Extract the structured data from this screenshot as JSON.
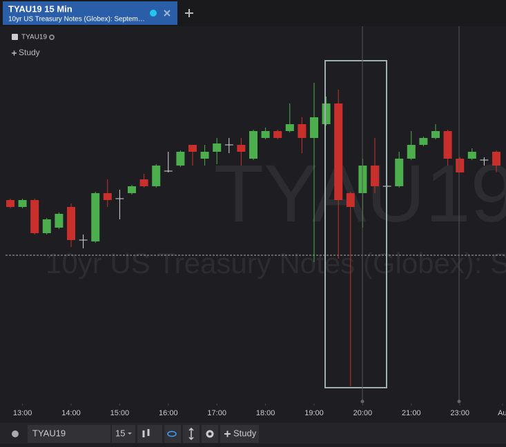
{
  "tab": {
    "title": "TYAU19 15 Min",
    "subtitle": "10yr US Treasury Notes (Globex): Septem…"
  },
  "legend": {
    "symbol": "TYAU19",
    "study": "Study"
  },
  "watermark": {
    "symbol": "TYAU19",
    "description": "10yr US Treasury Notes (Globex): S"
  },
  "toolbar": {
    "symbol": "TYAU19",
    "interval": "15",
    "study": "Study"
  },
  "chart_data": {
    "type": "candlestick",
    "up_color": "#4cae4c",
    "down_color": "#c9302c",
    "doji_color": "#d8d8d8",
    "ylim": [
      0,
      542
    ],
    "price_line": 210,
    "open": [
      290,
      280,
      290,
      242,
      250,
      280,
      232,
      230,
      300,
      292,
      300,
      320,
      310,
      332,
      340,
      370,
      350,
      360,
      370,
      370,
      350,
      380,
      390,
      390,
      400,
      380,
      400,
      430,
      300,
      300,
      340,
      310,
      310,
      350,
      370,
      380,
      390,
      350,
      350,
      348,
      360
    ],
    "high": [
      292,
      292,
      292,
      264,
      272,
      285,
      240,
      302,
      320,
      305,
      312,
      328,
      342,
      360,
      362,
      370,
      370,
      380,
      380,
      380,
      392,
      395,
      392,
      430,
      410,
      460,
      440,
      450,
      302,
      350,
      380,
      312,
      360,
      390,
      382,
      400,
      392,
      352,
      365,
      352,
      362
    ],
    "low": [
      278,
      278,
      240,
      240,
      248,
      222,
      220,
      228,
      280,
      262,
      298,
      308,
      308,
      330,
      338,
      340,
      340,
      342,
      358,
      340,
      348,
      378,
      378,
      388,
      358,
      200,
      398,
      205,
      20,
      250,
      300,
      308,
      308,
      348,
      368,
      378,
      340,
      330,
      348,
      340,
      330
    ],
    "close": [
      280,
      290,
      242,
      262,
      270,
      232,
      232,
      300,
      290,
      292,
      310,
      310,
      340,
      332,
      360,
      360,
      360,
      372,
      370,
      360,
      390,
      390,
      380,
      400,
      380,
      410,
      430,
      290,
      280,
      340,
      310,
      310,
      350,
      370,
      380,
      390,
      350,
      330,
      360,
      348,
      340
    ],
    "xticks": [
      {
        "value": 1,
        "label": "13:00"
      },
      {
        "value": 5,
        "label": "14:00"
      },
      {
        "value": 9,
        "label": "15:00"
      },
      {
        "value": 13,
        "label": "16:00"
      },
      {
        "value": 17,
        "label": "17:00"
      },
      {
        "value": 21,
        "label": "18:00"
      },
      {
        "value": 25,
        "label": "19:00"
      },
      {
        "value": 29,
        "label": "20:00"
      },
      {
        "value": 33,
        "label": "21:00"
      },
      {
        "value": 37,
        "label": "23:00"
      },
      {
        "value": 40.5,
        "label": "Au"
      }
    ]
  }
}
